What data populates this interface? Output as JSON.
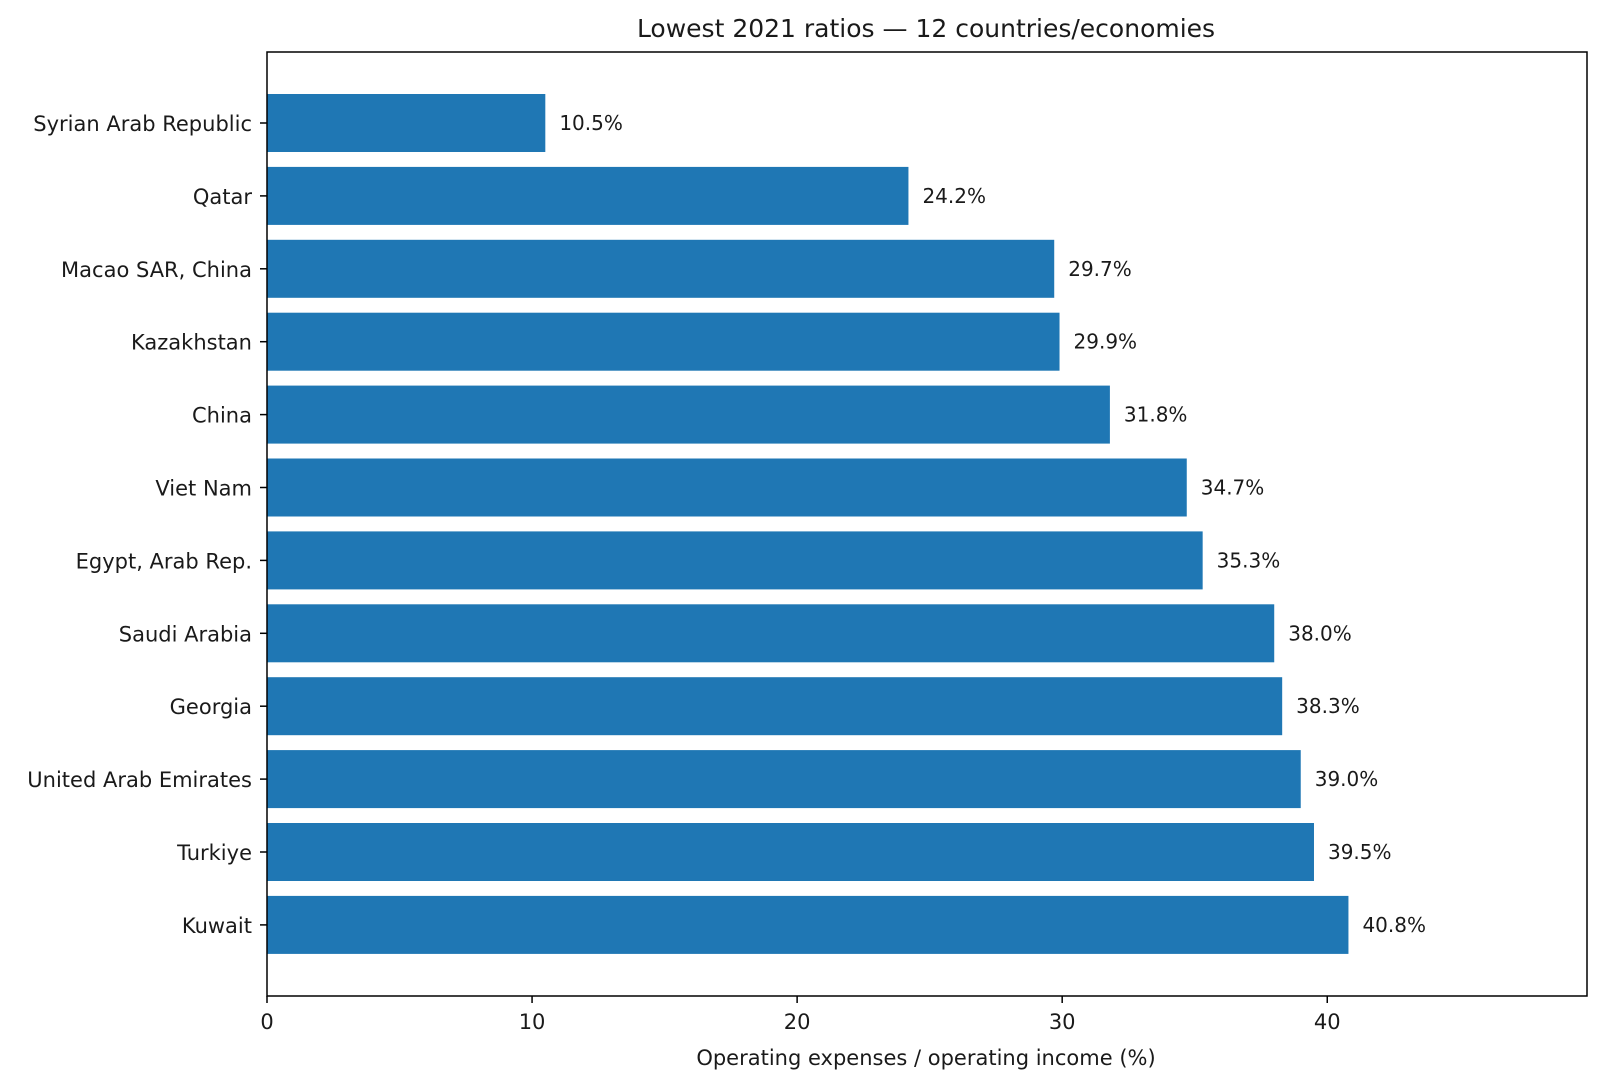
{
  "chart_data": {
    "type": "bar",
    "orientation": "horizontal",
    "title": "Lowest 2021 ratios — 12 countries/economies",
    "xlabel": "Operating expenses / operating income (%)",
    "ylabel": "",
    "categories": [
      "Syrian Arab Republic",
      "Qatar",
      "Macao SAR, China",
      "Kazakhstan",
      "China",
      "Viet Nam",
      "Egypt, Arab Rep.",
      "Saudi Arabia",
      "Georgia",
      "United Arab Emirates",
      "Turkiye",
      "Kuwait"
    ],
    "values": [
      10.5,
      24.2,
      29.7,
      29.9,
      31.8,
      34.7,
      35.3,
      38.0,
      38.3,
      39.0,
      39.5,
      40.8
    ],
    "data_labels": [
      "10.5%",
      "24.2%",
      "29.7%",
      "29.9%",
      "31.8%",
      "34.7%",
      "35.3%",
      "38.0%",
      "38.3%",
      "39.0%",
      "39.5%",
      "40.8%"
    ],
    "xlim": [
      0,
      49.8
    ],
    "xticks": [
      0,
      10,
      20,
      30,
      40
    ],
    "xtick_labels": [
      "0",
      "10",
      "20",
      "30",
      "40"
    ],
    "grid": false,
    "bar_color": "#1f77b4"
  }
}
